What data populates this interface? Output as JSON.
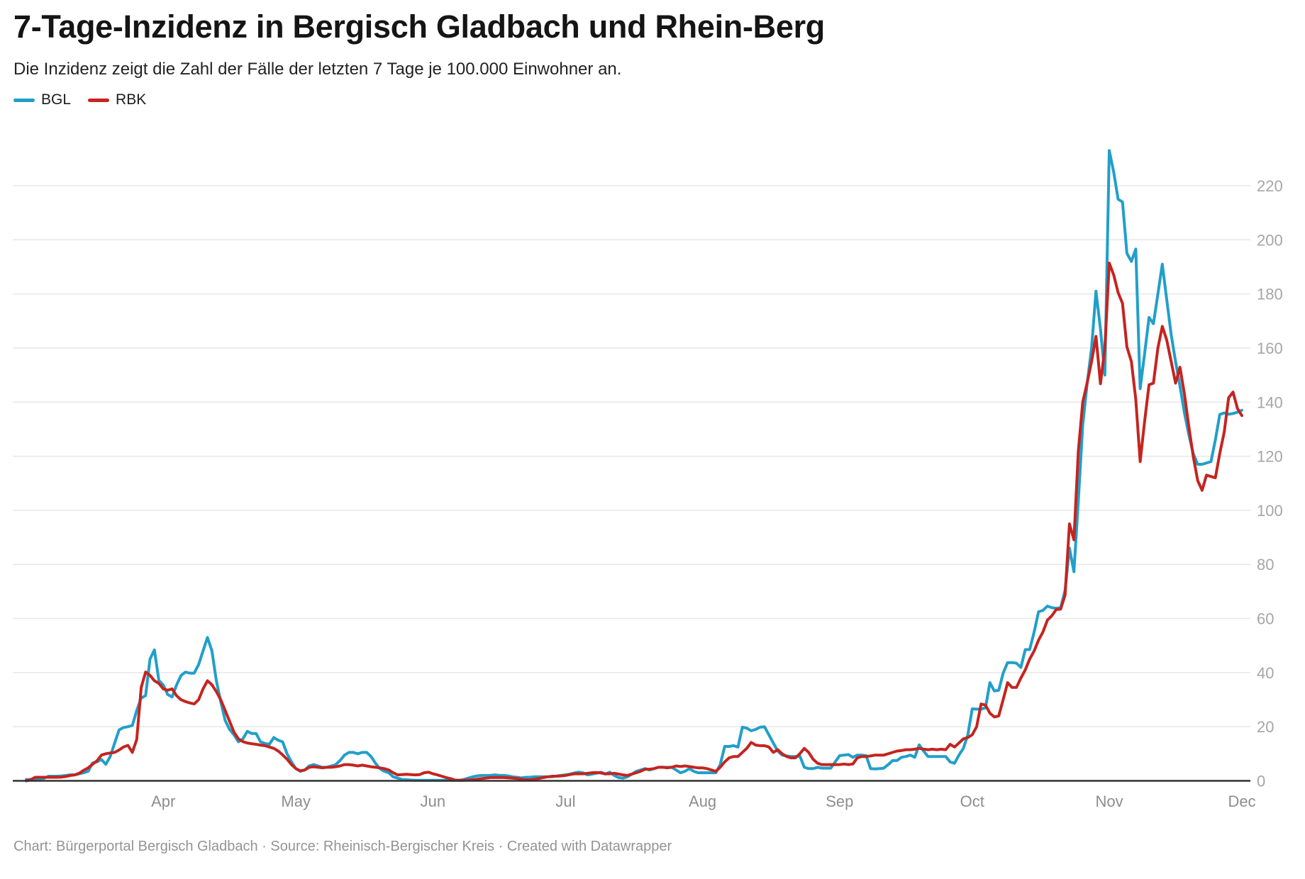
{
  "header": {
    "title": "7-Tage-Inzidenz in Bergisch Gladbach und Rhein-Berg",
    "subtitle": "Die Inzidenz zeigt die Zahl der Fälle der letzten 7 Tage je 100.000 Einwohner an."
  },
  "footer": {
    "text": "Chart: Bürgerportal Bergisch Gladbach · Source: Rheinisch-Bergischer Kreis · Created with Datawrapper"
  },
  "colors": {
    "bgl": "#219fc9",
    "rbk": "#c5241f",
    "grid": "#e7e7e7",
    "axis": "#303030",
    "y_tick_label": "#a6a6a6",
    "x_tick_label": "#8d8d8d"
  },
  "chart_data": {
    "type": "line",
    "title": "7-Tage-Inzidenz in Bergisch Gladbach und Rhein-Berg",
    "subtitle": "Die Inzidenz zeigt die Zahl der Fälle der letzten 7 Tage je 100.000 Einwohner an.",
    "xlabel": "",
    "ylabel": "",
    "grid": true,
    "legend_position": "top-left",
    "ylim": [
      0,
      240
    ],
    "y_axis": {
      "ticks": [
        0,
        20,
        40,
        60,
        80,
        100,
        120,
        140,
        160,
        180,
        200,
        220
      ]
    },
    "x_axis": {
      "unit": "days (daily values, first point = Mar 1, last point = Dec 1)",
      "tick_labels": [
        "Apr",
        "May",
        "Jun",
        "Jul",
        "Aug",
        "Sep",
        "Oct",
        "Nov",
        "Dec"
      ],
      "tick_days": [
        31,
        61,
        92,
        122,
        153,
        184,
        214,
        245,
        275
      ]
    },
    "series": [
      {
        "name": "BGL",
        "color": "#219fc9",
        "values": [
          0.5,
          0.5,
          0.6,
          0.8,
          0.9,
          1.7,
          1.7,
          1.7,
          1.8,
          2.0,
          2.2,
          2.2,
          2.6,
          3.0,
          3.5,
          6.6,
          7.0,
          7.9,
          6.1,
          9.0,
          14.0,
          18.8,
          19.7,
          20.0,
          20.5,
          26.0,
          30.6,
          31.5,
          45.0,
          48.4,
          37.1,
          35.4,
          31.9,
          31.0,
          35.4,
          38.9,
          40.2,
          39.8,
          39.8,
          43.0,
          48.0,
          53.0,
          48.0,
          37.1,
          29.3,
          22.3,
          19.0,
          17.0,
          14.4,
          15.5,
          18.3,
          17.5,
          17.5,
          14.4,
          13.8,
          13.5,
          16.0,
          15.0,
          14.4,
          10.0,
          7.0,
          4.5,
          3.5,
          4.0,
          5.5,
          6.0,
          5.5,
          5.0,
          5.0,
          5.5,
          6.0,
          7.5,
          9.5,
          10.5,
          10.5,
          10.0,
          10.5,
          10.5,
          9.0,
          6.5,
          4.5,
          3.5,
          3.0,
          1.5,
          1.0,
          0.5,
          0.4,
          0.3,
          0.2,
          0.2,
          0.2,
          0.2,
          0.2,
          0.2,
          0.2,
          0.2,
          0.2,
          0.2,
          0.2,
          0.5,
          1.0,
          1.5,
          1.8,
          2.0,
          2.0,
          2.0,
          2.2,
          2.0,
          2.0,
          1.8,
          1.5,
          1.3,
          1.1,
          1.3,
          1.3,
          1.5,
          1.5,
          1.5,
          1.5,
          1.5,
          1.8,
          2.0,
          2.2,
          2.5,
          2.9,
          3.2,
          2.9,
          2.2,
          2.5,
          2.8,
          3.2,
          2.5,
          3.2,
          2.0,
          1.2,
          1.0,
          1.5,
          2.5,
          3.5,
          4.0,
          4.5,
          4.0,
          4.5,
          5.0,
          5.0,
          5.0,
          5.0,
          4.0,
          3.0,
          3.5,
          4.5,
          3.5,
          3.0,
          3.0,
          3.0,
          3.0,
          3.0,
          6.0,
          12.7,
          12.7,
          13.0,
          12.5,
          19.8,
          19.5,
          18.5,
          19.0,
          19.8,
          20.0,
          17.0,
          14.0,
          11.0,
          9.5,
          9.2,
          9.0,
          9.0,
          9.2,
          5.0,
          4.5,
          4.5,
          5.0,
          4.7,
          4.7,
          4.7,
          7.0,
          9.3,
          9.5,
          9.7,
          8.7,
          9.5,
          9.5,
          9.3,
          4.5,
          4.4,
          4.5,
          4.7,
          6.0,
          7.5,
          7.5,
          8.7,
          9.0,
          9.5,
          8.7,
          13.3,
          11.0,
          9.0,
          9.0,
          9.0,
          9.0,
          9.0,
          7.0,
          6.5,
          9.5,
          12.0,
          17.0,
          26.6,
          26.5,
          26.5,
          27.0,
          36.3,
          33.2,
          33.5,
          39.8,
          43.7,
          43.7,
          43.5,
          41.9,
          48.5,
          48.5,
          55.0,
          62.5,
          63.0,
          64.6,
          64.0,
          63.8,
          64.0,
          70.4,
          86.0,
          77.3,
          103.5,
          131.5,
          147.0,
          160.0,
          181.0,
          167.0,
          150.0,
          233.0,
          225.0,
          215.0,
          214.0,
          195.0,
          192.0,
          196.6,
          145.0,
          158.0,
          171.3,
          169.0,
          180.0,
          191.0,
          178.0,
          165.0,
          155.0,
          146.0,
          136.0,
          128.0,
          121.0,
          117.0,
          117.0,
          117.5,
          118.0,
          126.0,
          135.4,
          136.0,
          135.5,
          135.8,
          136.3,
          137.0
        ]
      },
      {
        "name": "RBK",
        "color": "#c5241f",
        "values": [
          0.0,
          0.4,
          1.3,
          1.3,
          1.3,
          1.3,
          1.3,
          1.3,
          1.4,
          1.6,
          2.0,
          2.2,
          2.8,
          3.9,
          4.8,
          6.1,
          7.4,
          9.5,
          10.0,
          10.3,
          10.5,
          11.4,
          12.5,
          13.1,
          10.5,
          15.3,
          34.5,
          40.2,
          39.0,
          37.0,
          36.0,
          34.0,
          33.5,
          34.0,
          31.5,
          30.0,
          29.3,
          28.8,
          28.4,
          30.0,
          34.0,
          37.0,
          35.5,
          33.0,
          30.0,
          26.0,
          22.0,
          18.0,
          15.5,
          14.5,
          14.0,
          13.7,
          13.5,
          13.2,
          13.0,
          12.5,
          12.0,
          11.0,
          9.6,
          8.0,
          6.0,
          4.5,
          3.7,
          4.0,
          5.0,
          5.2,
          5.0,
          4.8,
          5.0,
          5.0,
          5.2,
          5.5,
          6.0,
          6.0,
          5.8,
          5.5,
          5.8,
          5.5,
          5.2,
          5.0,
          4.8,
          4.5,
          4.0,
          3.0,
          2.2,
          2.3,
          2.4,
          2.3,
          2.2,
          2.3,
          3.0,
          3.2,
          2.6,
          2.2,
          1.7,
          1.2,
          0.8,
          0.3,
          0.2,
          0.2,
          0.3,
          0.4,
          0.6,
          0.8,
          1.0,
          1.2,
          1.2,
          1.2,
          1.2,
          1.1,
          1.0,
          0.9,
          0.6,
          0.4,
          0.4,
          0.6,
          0.9,
          1.2,
          1.5,
          1.7,
          1.7,
          1.8,
          2.0,
          2.3,
          2.6,
          2.6,
          2.6,
          2.8,
          3.0,
          3.1,
          2.9,
          2.6,
          2.6,
          2.8,
          2.5,
          2.2,
          2.0,
          2.5,
          3.0,
          3.5,
          4.3,
          4.3,
          4.5,
          5.0,
          5.0,
          4.8,
          5.0,
          5.5,
          5.3,
          5.5,
          5.3,
          5.0,
          4.8,
          4.8,
          4.5,
          4.0,
          3.5,
          5.0,
          7.0,
          8.5,
          9.0,
          9.0,
          10.5,
          12.0,
          14.2,
          13.2,
          13.0,
          13.0,
          12.5,
          10.5,
          11.5,
          10.0,
          9.0,
          8.5,
          8.5,
          10.0,
          12.0,
          10.5,
          8.0,
          6.5,
          6.0,
          6.0,
          6.0,
          6.0,
          6.0,
          6.2,
          6.0,
          6.2,
          8.5,
          9.0,
          9.0,
          9.2,
          9.5,
          9.5,
          9.5,
          10.0,
          10.5,
          11.0,
          11.2,
          11.5,
          11.5,
          11.7,
          12.0,
          11.7,
          11.5,
          11.7,
          11.5,
          11.7,
          11.5,
          13.5,
          12.5,
          14.0,
          15.5,
          16.0,
          17.0,
          20.0,
          28.4,
          28.0,
          25.0,
          23.6,
          24.0,
          30.0,
          36.3,
          34.5,
          34.5,
          38.0,
          41.0,
          45.0,
          48.0,
          52.0,
          55.0,
          59.4,
          61.0,
          63.3,
          63.5,
          68.6,
          95.0,
          89.1,
          121.9,
          140.0,
          147.2,
          155.0,
          164.3,
          146.8,
          160.0,
          191.4,
          187.0,
          180.5,
          176.5,
          160.4,
          155.0,
          141.0,
          118.0,
          133.0,
          146.4,
          147.0,
          160.0,
          168.0,
          163.0,
          155.0,
          147.0,
          152.9,
          143.0,
          131.0,
          120.0,
          111.0,
          107.4,
          113.0,
          112.5,
          112.0,
          121.0,
          128.9,
          141.6,
          143.7,
          137.6,
          135.0
        ]
      }
    ]
  }
}
